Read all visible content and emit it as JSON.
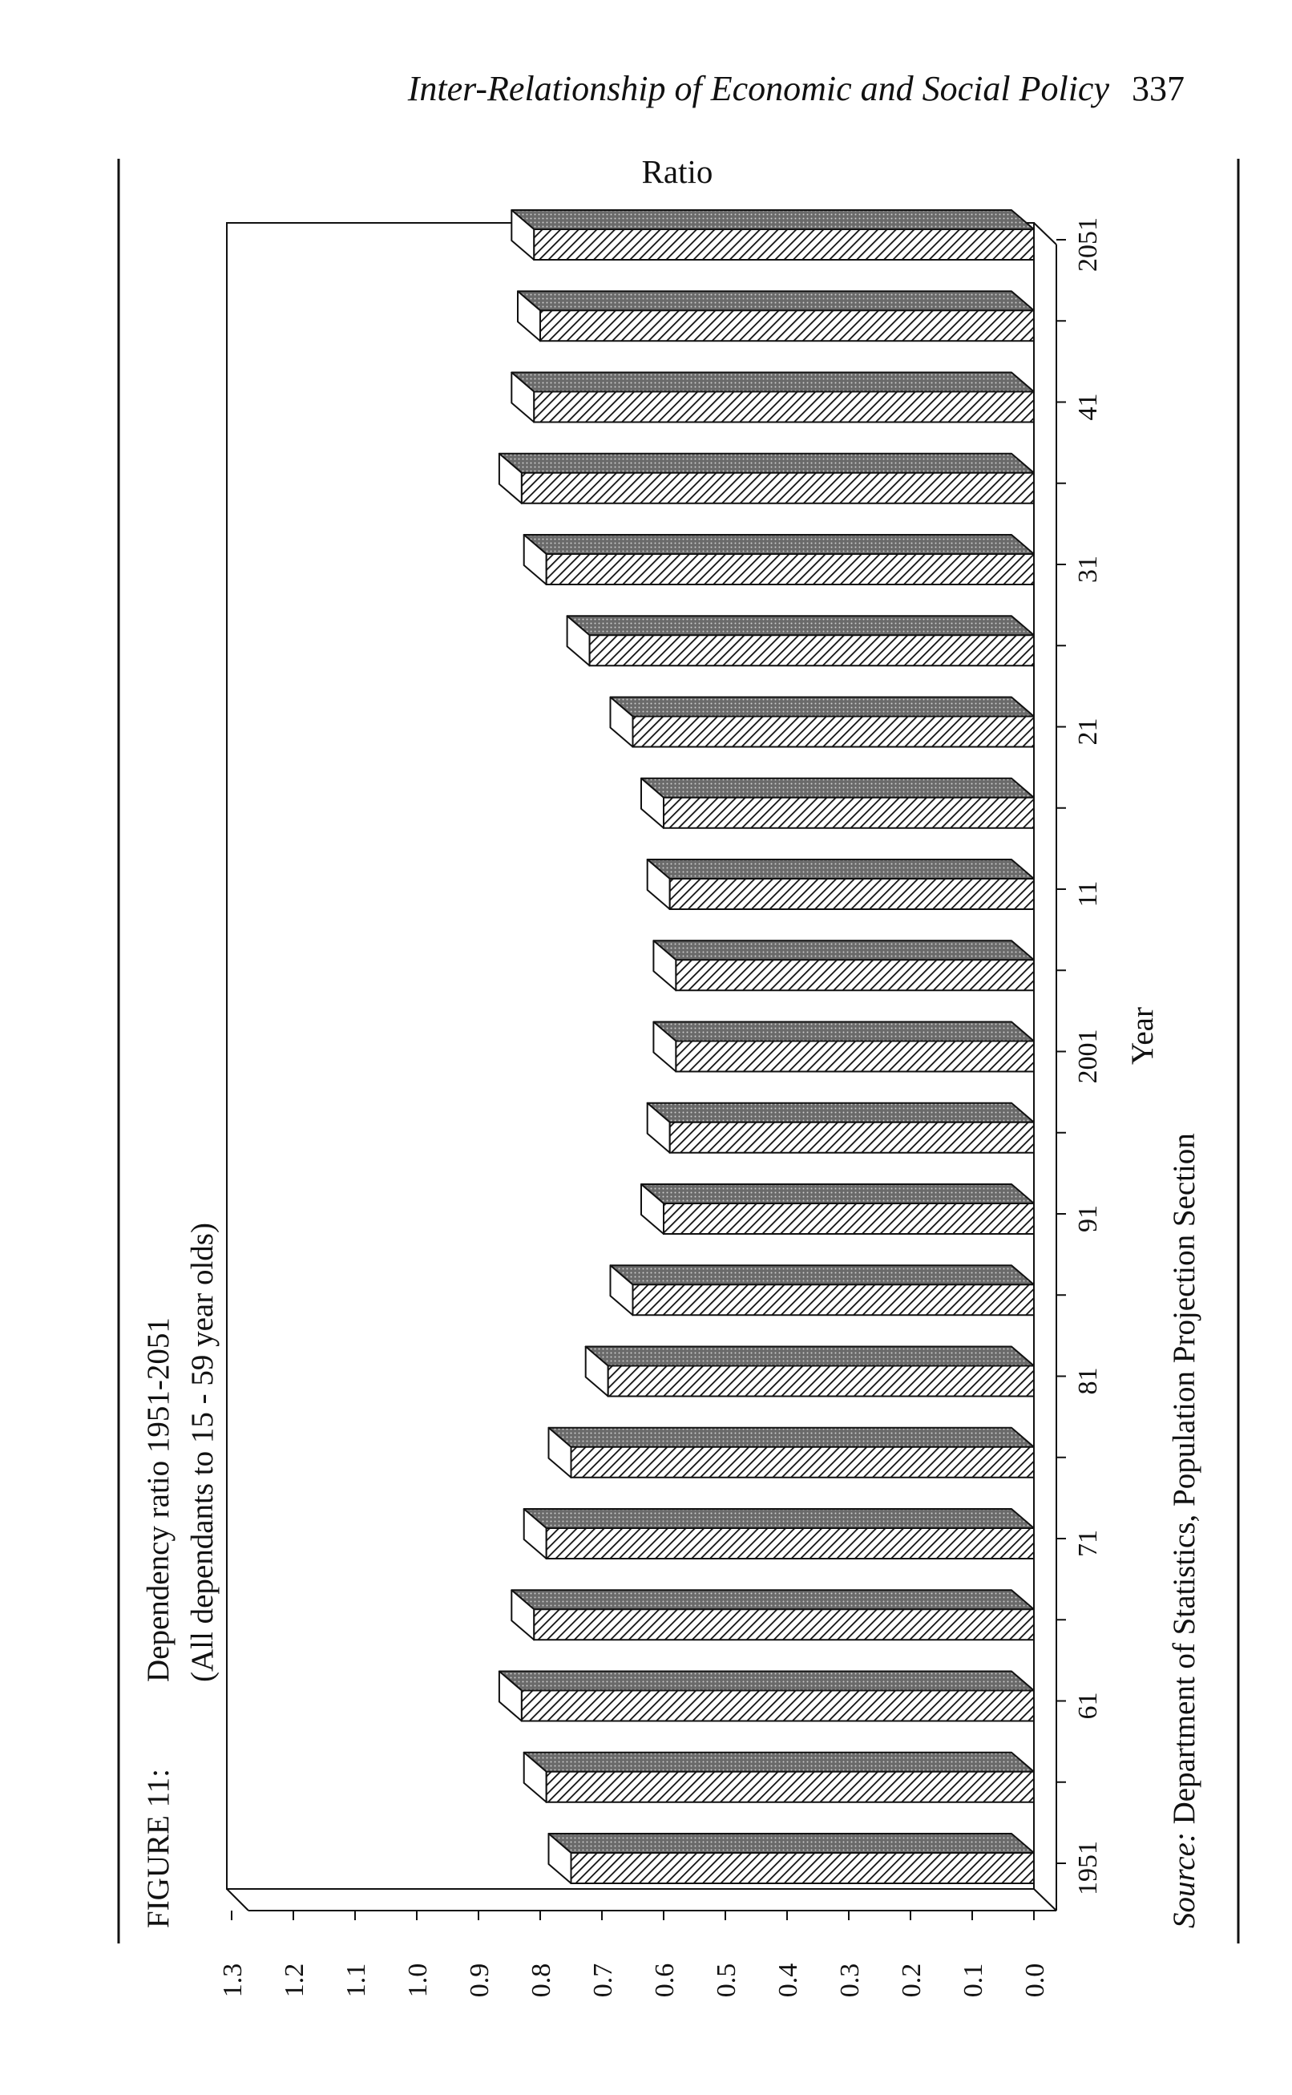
{
  "header": {
    "title": "Inter-Relationship of Economic and Social Policy",
    "page_number": "337"
  },
  "figure": {
    "number": "FIGURE 11:",
    "title_line1": "Dependency ratio 1951-2051",
    "title_line2": "(All dependants to 15 - 59 year olds)",
    "source_label": "Source:",
    "source_text": "Department of Statistics, Population Projection Section"
  },
  "chart_data": {
    "type": "bar",
    "orientation": "rotated 90 degrees on the page (value axis runs along the bottom, years up the right side)",
    "title": "Dependency ratio 1951-2051",
    "subtitle": "(All dependants to 15 - 59 year olds)",
    "ylabel": "Ratio",
    "xlabel": "Year",
    "ylim": [
      0,
      1.3
    ],
    "yticks": [
      "0.0",
      "0.1",
      "0.2",
      "0.3",
      "0.4",
      "0.5",
      "0.6",
      "0.7",
      "0.8",
      "0.9",
      "1.0",
      "1.1",
      "1.2",
      "1.3"
    ],
    "tick_labels": [
      "1951",
      "61",
      "71",
      "81",
      "91",
      "2001",
      "11",
      "21",
      "31",
      "41",
      "2051"
    ],
    "categories": [
      "1951",
      "1956",
      "1961",
      "1966",
      "1971",
      "1976",
      "1981",
      "1986",
      "1991",
      "1996",
      "2001",
      "2006",
      "2011",
      "2016",
      "2021",
      "2026",
      "2031",
      "2036",
      "2041",
      "2046",
      "2051"
    ],
    "values": [
      0.75,
      0.79,
      0.83,
      0.81,
      0.79,
      0.75,
      0.69,
      0.65,
      0.6,
      0.59,
      0.58,
      0.58,
      0.59,
      0.6,
      0.65,
      0.72,
      0.79,
      0.83,
      0.81,
      0.8,
      0.81
    ],
    "style": "3-D bars with diagonal hatching, dark top faces, white end faces",
    "grid": false,
    "legend": "none"
  }
}
